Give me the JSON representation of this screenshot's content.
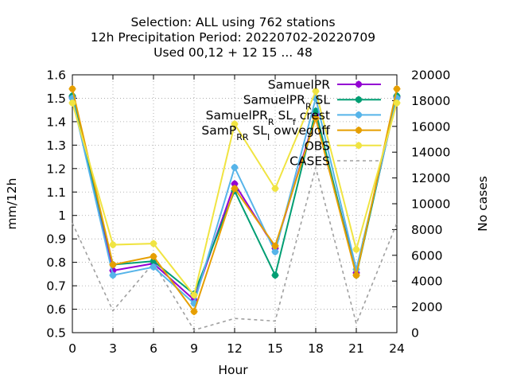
{
  "chart_data": {
    "type": "line",
    "title": [
      "Selection: ALL using   762 stations",
      "12h Precipitation   Period: 20220702-20220709",
      "Used  00,12  + 12 15 ... 48"
    ],
    "xlabel": "Hour",
    "ylabel": "mm/12h",
    "y2label": "No cases",
    "x": [
      0,
      3,
      6,
      9,
      12,
      15,
      18,
      21,
      24
    ],
    "x_ticks": [
      "0",
      "3",
      "6",
      "9",
      "12",
      "15",
      "18",
      "21",
      "24"
    ],
    "xlim": [
      0,
      24
    ],
    "ylim": [
      0.5,
      1.6
    ],
    "y_ticks": [
      "0.5",
      "0.6",
      "0.7",
      "0.8",
      "0.9",
      "1",
      "1.1",
      "1.2",
      "1.3",
      "1.4",
      "1.5",
      "1.6"
    ],
    "y2lim": [
      0,
      20000
    ],
    "y2_ticks": [
      "0",
      "2000",
      "4000",
      "6000",
      "8000",
      "10000",
      "12000",
      "14000",
      "16000",
      "18000",
      "20000"
    ],
    "grid": true,
    "legend_position": "top-right",
    "series": [
      {
        "name": "SamuelPR",
        "color": "#9400d3",
        "marker": "plus",
        "values": [
          1.505,
          0.765,
          0.795,
          0.64,
          1.135,
          0.86,
          1.43,
          0.755,
          1.505
        ]
      },
      {
        "name": "SamuelPR_R SL",
        "color": "#009e73",
        "marker": "plus",
        "values": [
          1.51,
          0.79,
          0.805,
          0.665,
          1.105,
          0.745,
          1.445,
          0.745,
          1.51
        ]
      },
      {
        "name": "SamuelPR_R SL_f crest",
        "color": "#56b4e9",
        "marker": "plus",
        "values": [
          1.5,
          0.745,
          0.78,
          0.625,
          1.205,
          0.845,
          1.5,
          0.77,
          1.5
        ]
      },
      {
        "name": "SamP_R_R SL_I owvegoff",
        "color": "#e69f00",
        "marker": "plus",
        "values": [
          1.54,
          0.79,
          0.825,
          0.59,
          1.115,
          0.87,
          1.415,
          0.745,
          1.54
        ]
      },
      {
        "name": "OBS",
        "color": "#f0e442",
        "marker": "plus",
        "values": [
          1.48,
          0.875,
          0.88,
          0.66,
          1.39,
          1.115,
          1.53,
          0.855,
          1.48
        ]
      }
    ],
    "cases": {
      "name": "CASES",
      "color": "#a0a0a0",
      "axis": "y2",
      "values": [
        8500,
        1700,
        5400,
        200,
        1100,
        900,
        12800,
        700,
        8500
      ]
    }
  }
}
